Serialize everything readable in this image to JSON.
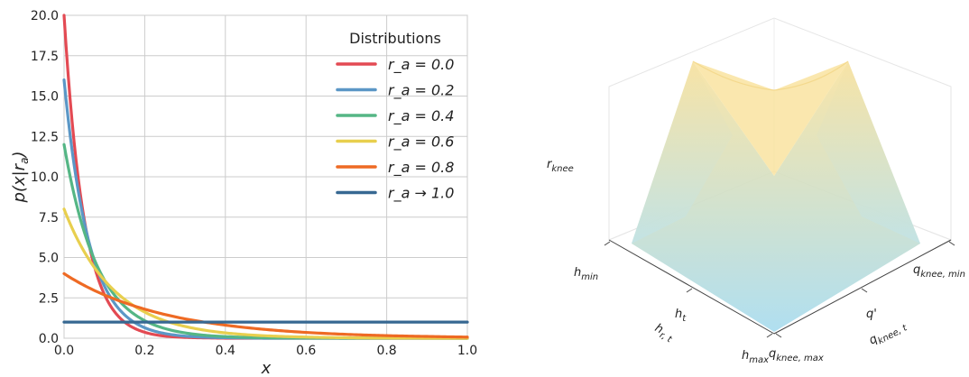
{
  "chart_data": [
    {
      "type": "line",
      "title": "",
      "xlabel": "x",
      "ylabel": "p(x|r_a)",
      "xlim": [
        0.0,
        1.0
      ],
      "ylim": [
        0.0,
        20.0
      ],
      "xticks": [
        "0.0",
        "0.2",
        "0.4",
        "0.6",
        "0.8",
        "1.0"
      ],
      "yticks": [
        "0.0",
        "2.5",
        "5.0",
        "7.5",
        "10.0",
        "12.5",
        "15.0",
        "17.5",
        "20.0"
      ],
      "grid": true,
      "legend": {
        "title": "Distributions",
        "position": "top-right"
      },
      "x": [
        0.0,
        0.05,
        0.1,
        0.15,
        0.2,
        0.25,
        0.3,
        0.35,
        0.4,
        0.5,
        0.6,
        0.7,
        0.8,
        0.9,
        1.0
      ],
      "series": [
        {
          "name": "r_a = 0.0",
          "color": "#e34a53",
          "values": [
            20.0,
            7.36,
            2.71,
            1.0,
            0.37,
            0.13,
            0.05,
            0.02,
            0.0,
            0.0,
            0.0,
            0.0,
            0.0,
            0.0,
            0.0
          ]
        },
        {
          "name": "r_a = 0.2",
          "color": "#5b97c6",
          "values": [
            16.0,
            7.19,
            3.23,
            1.45,
            0.65,
            0.29,
            0.13,
            0.06,
            0.03,
            0.0,
            0.0,
            0.0,
            0.0,
            0.0,
            0.0
          ]
        },
        {
          "name": "r_a = 0.4",
          "color": "#55b685",
          "values": [
            12.0,
            6.59,
            3.61,
            1.98,
            1.09,
            0.6,
            0.33,
            0.18,
            0.1,
            0.03,
            0.01,
            0.0,
            0.0,
            0.0,
            0.0
          ]
        },
        {
          "name": "r_a = 0.6",
          "color": "#e8cf4e",
          "values": [
            8.0,
            5.36,
            3.59,
            2.41,
            1.62,
            1.08,
            0.73,
            0.49,
            0.33,
            0.15,
            0.07,
            0.03,
            0.01,
            0.0,
            0.0
          ]
        },
        {
          "name": "r_a = 0.8",
          "color": "#ee6a24",
          "values": [
            4.0,
            3.27,
            2.68,
            2.2,
            1.8,
            1.47,
            1.2,
            0.99,
            0.81,
            0.54,
            0.36,
            0.24,
            0.16,
            0.11,
            0.07
          ]
        },
        {
          "name": "r_a → 1.0",
          "color": "#376892",
          "values": [
            1.0,
            1.0,
            1.0,
            1.0,
            1.0,
            1.0,
            1.0,
            1.0,
            1.0,
            1.0,
            1.0,
            1.0,
            1.0,
            1.0,
            1.0
          ]
        }
      ]
    },
    {
      "type": "surface",
      "title": "",
      "zlabel": "r_knee",
      "axis_left_label": "h_r,t",
      "axis_left_ticks": [
        "h_min",
        "h_t",
        "h_max"
      ],
      "axis_right_label": "q_knee,t",
      "axis_right_ticks": [
        "q_knee,min",
        "q'",
        "q_knee,max"
      ],
      "colormap": [
        "#a9dcef",
        "#f9e3a0"
      ]
    }
  ]
}
